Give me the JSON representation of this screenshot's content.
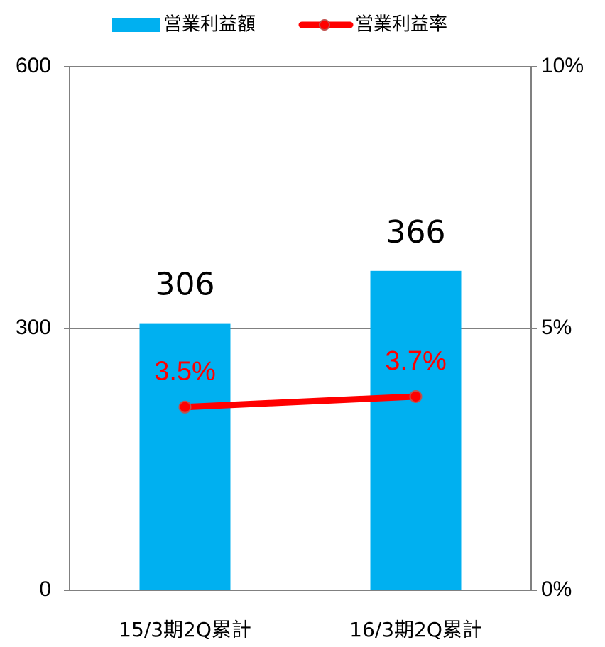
{
  "chart_data": {
    "type": "bar",
    "categories": [
      "15/3期2Q累計",
      "16/3期2Q累計"
    ],
    "series": [
      {
        "name": "営業利益額",
        "kind": "bar",
        "axis": "left",
        "values": [
          306,
          366
        ],
        "labels": [
          "306",
          "366"
        ]
      },
      {
        "name": "営業利益率",
        "kind": "line",
        "axis": "right",
        "values": [
          3.5,
          3.7
        ],
        "labels": [
          "3.5%",
          "3.7%"
        ]
      }
    ],
    "y_left": {
      "lim": [
        0,
        600
      ],
      "ticks": [
        0,
        300,
        600
      ],
      "tick_labels": [
        "0",
        "300",
        "600"
      ]
    },
    "y_right": {
      "lim": [
        0,
        10
      ],
      "ticks": [
        0,
        5,
        10
      ],
      "tick_labels": [
        "0%",
        "5%",
        "10%"
      ]
    },
    "grid": "horizontal",
    "legend_position": "top"
  },
  "colors": {
    "bar": "#00b0f0",
    "line": "#ff0000",
    "marker_edge": "#c0504d",
    "axis": "#808080"
  }
}
